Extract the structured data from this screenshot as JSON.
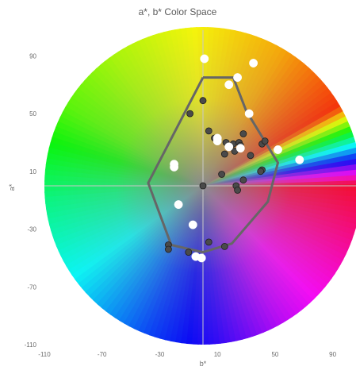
{
  "chart_data": {
    "type": "scatter",
    "title": "a*, b* Color Space",
    "xlabel": "b*",
    "ylabel": "a*",
    "xlim": [
      -110,
      110
    ],
    "ylim": [
      -110,
      110
    ],
    "xticks": [
      -110,
      -70,
      -30,
      10,
      50,
      90
    ],
    "yticks": [
      90,
      50,
      10,
      -30,
      -70,
      -110
    ],
    "grid": false,
    "legend": "none",
    "background": "a*b* color wheel",
    "series": [
      {
        "marker": "dark-gray filled circle",
        "color": "#4a4a4a",
        "points": [
          [
            -9,
            50
          ],
          [
            0,
            59
          ],
          [
            4,
            38
          ],
          [
            8,
            33
          ],
          [
            16,
            30
          ],
          [
            21,
            29
          ],
          [
            25,
            30
          ],
          [
            28,
            36
          ],
          [
            26,
            28
          ],
          [
            22,
            24
          ],
          [
            15,
            22
          ],
          [
            33,
            21
          ],
          [
            41,
            29
          ],
          [
            43,
            31
          ],
          [
            41,
            11
          ],
          [
            40,
            10
          ],
          [
            28,
            4
          ],
          [
            23,
            0
          ],
          [
            24,
            -3
          ],
          [
            13,
            8
          ],
          [
            0,
            0
          ],
          [
            -24,
            -41
          ],
          [
            -24,
            -44
          ],
          [
            -10,
            -46
          ],
          [
            4,
            -39
          ],
          [
            15,
            -42
          ]
        ]
      },
      {
        "marker": "white filled circle",
        "color": "#ffffff",
        "points": [
          [
            1,
            88
          ],
          [
            35,
            85
          ],
          [
            24,
            75
          ],
          [
            18,
            70
          ],
          [
            32,
            50
          ],
          [
            10,
            31
          ],
          [
            18,
            27
          ],
          [
            26,
            26
          ],
          [
            52,
            25
          ],
          [
            67,
            18
          ],
          [
            -20,
            15
          ],
          [
            -20,
            13
          ],
          [
            -17,
            -13
          ],
          [
            -7,
            -27
          ],
          [
            -5,
            -49
          ],
          [
            -1,
            -50
          ],
          [
            10,
            33
          ]
        ]
      }
    ],
    "polygon": {
      "color": "#666666",
      "points": [
        [
          0,
          75
        ],
        [
          21,
          75
        ],
        [
          30,
          52
        ],
        [
          52,
          16
        ],
        [
          45,
          -11
        ],
        [
          20,
          -40
        ],
        [
          0,
          -46
        ],
        [
          -22,
          -41
        ],
        [
          -38,
          2
        ],
        [
          0,
          75
        ]
      ]
    }
  }
}
